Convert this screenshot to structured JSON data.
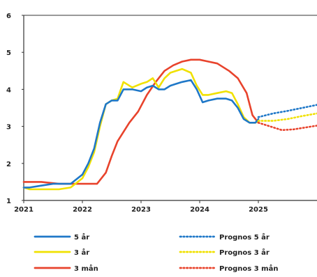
{
  "chart_data": {
    "type": "line",
    "title": "",
    "xlabel": "",
    "ylabel": "",
    "xlim": [
      2021.0,
      2026.0
    ],
    "ylim": [
      1,
      6
    ],
    "x_ticks": [
      2021,
      2022,
      2023,
      2024,
      2025
    ],
    "y_ticks": [
      1,
      2,
      3,
      4,
      5,
      6
    ],
    "grid": false,
    "legend_position": "bottom",
    "series": [
      {
        "name": "5 år",
        "color": "#1f78c8",
        "style": "solid",
        "x": [
          2021.0,
          2021.1,
          2021.3,
          2021.5,
          2021.6,
          2021.8,
          2022.0,
          2022.1,
          2022.2,
          2022.3,
          2022.4,
          2022.5,
          2022.6,
          2022.7,
          2022.85,
          2023.0,
          2023.1,
          2023.2,
          2023.3,
          2023.4,
          2023.5,
          2023.6,
          2023.7,
          2023.85,
          2023.95,
          2024.05,
          2024.15,
          2024.3,
          2024.45,
          2024.55,
          2024.65,
          2024.75,
          2024.85,
          2024.95,
          2025.0
        ],
        "y": [
          1.35,
          1.35,
          1.4,
          1.45,
          1.45,
          1.45,
          1.7,
          2.0,
          2.4,
          3.1,
          3.6,
          3.7,
          3.7,
          4.0,
          4.0,
          3.95,
          4.05,
          4.1,
          4.0,
          4.0,
          4.1,
          4.15,
          4.2,
          4.25,
          4.0,
          3.65,
          3.7,
          3.75,
          3.75,
          3.7,
          3.5,
          3.2,
          3.1,
          3.1,
          3.2
        ]
      },
      {
        "name": "3 år",
        "color": "#f0e100",
        "style": "solid",
        "x": [
          2021.0,
          2021.1,
          2021.3,
          2021.5,
          2021.6,
          2021.8,
          2022.0,
          2022.1,
          2022.2,
          2022.3,
          2022.4,
          2022.5,
          2022.6,
          2022.7,
          2022.85,
          2023.0,
          2023.1,
          2023.2,
          2023.3,
          2023.4,
          2023.5,
          2023.6,
          2023.7,
          2023.85,
          2023.95,
          2024.05,
          2024.15,
          2024.3,
          2024.45,
          2024.55,
          2024.65,
          2024.75,
          2024.85,
          2024.95,
          2025.0
        ],
        "y": [
          1.35,
          1.3,
          1.3,
          1.3,
          1.3,
          1.35,
          1.6,
          1.9,
          2.3,
          3.0,
          3.6,
          3.7,
          3.75,
          4.2,
          4.05,
          4.15,
          4.2,
          4.3,
          4.05,
          4.3,
          4.45,
          4.5,
          4.55,
          4.45,
          4.1,
          3.85,
          3.85,
          3.9,
          3.95,
          3.9,
          3.6,
          3.25,
          3.1,
          3.1,
          3.15
        ]
      },
      {
        "name": "3 mån",
        "color": "#e8432c",
        "style": "solid",
        "x": [
          2021.0,
          2021.3,
          2021.6,
          2021.8,
          2022.0,
          2022.1,
          2022.25,
          2022.4,
          2022.5,
          2022.6,
          2022.8,
          2022.95,
          2023.1,
          2023.25,
          2023.4,
          2023.55,
          2023.7,
          2023.85,
          2024.0,
          2024.15,
          2024.3,
          2024.5,
          2024.65,
          2024.8,
          2024.9,
          2025.0
        ],
        "y": [
          1.5,
          1.5,
          1.45,
          1.45,
          1.45,
          1.45,
          1.45,
          1.75,
          2.2,
          2.6,
          3.1,
          3.4,
          3.85,
          4.2,
          4.5,
          4.65,
          4.75,
          4.8,
          4.8,
          4.75,
          4.7,
          4.5,
          4.3,
          3.9,
          3.3,
          3.1
        ]
      },
      {
        "name": "Prognos 5 år",
        "color": "#1f78c8",
        "style": "dotted",
        "x": [
          2025.0,
          2025.25,
          2025.5,
          2025.75,
          2026.0
        ],
        "y": [
          3.25,
          3.35,
          3.42,
          3.5,
          3.58
        ]
      },
      {
        "name": "Prognos 3 år",
        "color": "#f0e100",
        "style": "dotted",
        "x": [
          2025.0,
          2025.25,
          2025.5,
          2025.75,
          2026.0
        ],
        "y": [
          3.15,
          3.15,
          3.2,
          3.28,
          3.35
        ]
      },
      {
        "name": "Prognos 3 mån",
        "color": "#e8432c",
        "style": "dotted",
        "x": [
          2025.0,
          2025.2,
          2025.4,
          2025.6,
          2025.8,
          2026.0
        ],
        "y": [
          3.1,
          3.0,
          2.9,
          2.92,
          2.97,
          3.02
        ]
      }
    ]
  }
}
